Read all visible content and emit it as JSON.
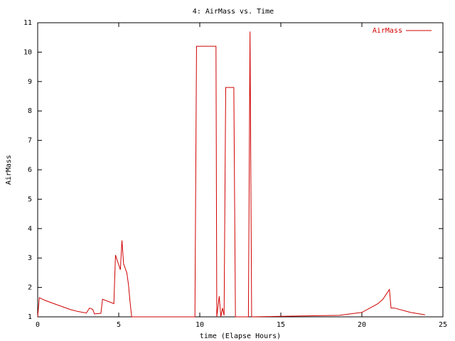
{
  "chart_data": {
    "type": "line",
    "title": "4: AirMass vs. Time",
    "x_label": "time (Elapse Hours)",
    "y_label": "AirMass",
    "x": [
      0,
      0.1,
      0.5,
      1,
      1.5,
      2,
      2.5,
      3,
      3.2,
      3.4,
      3.5,
      3.9,
      4.0,
      4.7,
      4.8,
      5.1,
      5.2,
      5.3,
      5.5,
      5.6,
      5.7,
      5.8,
      9.7,
      9.8,
      11.0,
      11.05,
      11.2,
      11.3,
      11.4,
      11.5,
      11.6,
      12.1,
      12.2,
      13.0,
      13.1,
      13.2,
      18.6,
      20,
      21,
      21.3,
      21.7,
      21.8,
      22,
      23,
      23.9
    ],
    "series": [
      {
        "name": "AirMass",
        "color": "#d00000",
        "values": [
          1.0,
          1.65,
          1.55,
          1.45,
          1.35,
          1.25,
          1.18,
          1.13,
          1.3,
          1.25,
          1.1,
          1.12,
          1.6,
          1.45,
          3.1,
          2.6,
          3.6,
          2.8,
          2.5,
          2.1,
          1.5,
          1.0,
          1.0,
          10.2,
          10.2,
          1.0,
          1.7,
          1.0,
          1.3,
          1.05,
          8.8,
          8.8,
          1.0,
          1.0,
          10.7,
          1.0,
          1.05,
          1.15,
          1.45,
          1.6,
          1.93,
          1.3,
          1.3,
          1.15,
          1.07
        ]
      }
    ],
    "xlim": [
      0,
      25
    ],
    "xticks": [
      0,
      5,
      10,
      15,
      20,
      25
    ],
    "ylim": [
      1,
      11
    ],
    "yticks": [
      1,
      2,
      3,
      4,
      5,
      6,
      7,
      8,
      9,
      10,
      11
    ],
    "legend": "top-right"
  }
}
